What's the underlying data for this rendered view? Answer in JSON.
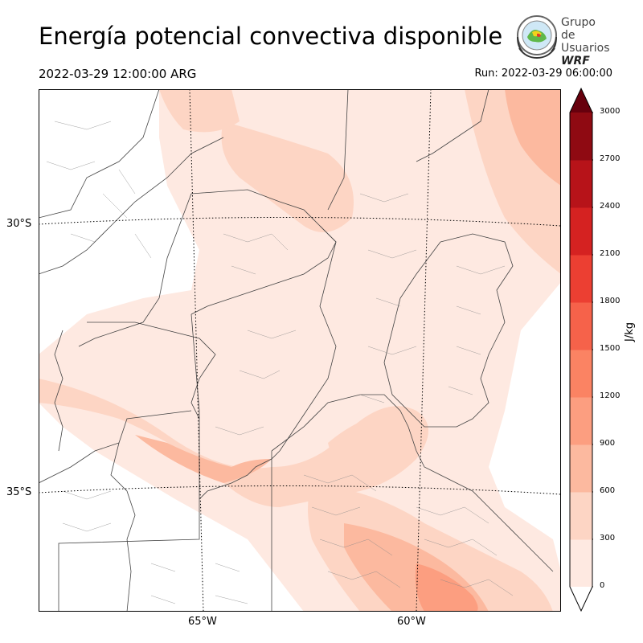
{
  "header": {
    "title": "Energía potencial convectiva disponible",
    "valid_time": "2022-03-29 12:00:00 ARG",
    "run": "Run: 2022-03-29 06:00:00"
  },
  "logo": {
    "line1": "Grupo de",
    "line2": "Usuarios",
    "line3": "WRF"
  },
  "map": {
    "lat_labels": [
      "30°S",
      "35°S"
    ],
    "lon_labels": [
      "65°W",
      "60°W"
    ]
  },
  "colorbar": {
    "unit": "J/kg",
    "ticks": [
      "0",
      "300",
      "600",
      "900",
      "1200",
      "1500",
      "1800",
      "2100",
      "2400",
      "2700",
      "3000"
    ],
    "levels": [
      0,
      300,
      600,
      900,
      1200,
      1500,
      1800,
      2100,
      2400,
      2700,
      3000
    ],
    "colors": [
      "#fee9e1",
      "#fdd5c4",
      "#fcb99f",
      "#fc9e80",
      "#fb8363",
      "#f6624a",
      "#ec3f32",
      "#d52221",
      "#b71319",
      "#8f0a12",
      "#67000d"
    ],
    "extend": "max"
  }
}
